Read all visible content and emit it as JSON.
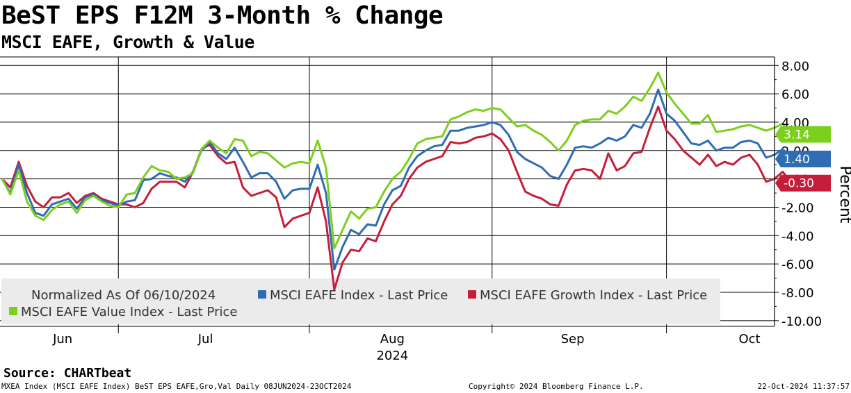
{
  "header": {
    "title": "BeST EPS F12M 3-Month % Change",
    "subtitle": "MSCI EAFE, Growth & Value"
  },
  "footer": {
    "source": "Source: CHARTbeat",
    "left": "MXEA Index (MSCI EAFE Index) BeST EPS EAFE,Gro,Val  Daily 08JUN2024-23OCT2024",
    "center": "Copyright© 2024 Bloomberg Finance L.P.",
    "right": "22-Oct-2024 11:37:57"
  },
  "colors": {
    "index": "#2E6DB4",
    "growth": "#C41E3A",
    "value": "#7DCF1E",
    "legend_bg": "#EBEBEB"
  },
  "chart_data": {
    "type": "line",
    "title": "BeST EPS F12M 3-Month % Change",
    "subtitle": "MSCI EAFE, Growth & Value",
    "ylabel": "Percent",
    "xlabel": "2024",
    "ylim": [
      -10.4,
      8.6
    ],
    "yticks": [
      8,
      6,
      4,
      2,
      0,
      -2,
      -4,
      -6,
      -8,
      -10
    ],
    "ytick_labels": [
      "8.00",
      "6.00",
      "4.00",
      "2.00",
      "0.00",
      "-2.00",
      "-4.00",
      "-6.00",
      "-8.00",
      "-10.00"
    ],
    "x_range": [
      0,
      91
    ],
    "month_labels": [
      {
        "label": "Jun",
        "x": 8.3
      },
      {
        "label": "Jul",
        "x": 25.5
      },
      {
        "label": "Aug",
        "x": 48
      },
      {
        "label": "Sep",
        "x": 69.7
      },
      {
        "label": "Oct",
        "x": 91
      }
    ],
    "year_label": "2024",
    "year_x": 48,
    "vertical_gridlines_x": [
      14,
      37,
      59,
      80
    ],
    "legend_note": "Normalized As Of 06/10/2024",
    "series": [
      {
        "name": "MSCI EAFE Index - Last Price",
        "key": "index",
        "last_value": "1.40",
        "values": [
          0.0,
          -1.0,
          1.0,
          -1.0,
          -2.4,
          -2.6,
          -1.8,
          -1.6,
          -1.4,
          -2.1,
          -1.3,
          -1.1,
          -1.5,
          -1.7,
          -1.9,
          -1.6,
          -1.5,
          -0.1,
          0.0,
          0.4,
          0.2,
          0.1,
          -0.2,
          0.5,
          2.0,
          2.6,
          1.8,
          1.4,
          2.2,
          1.2,
          0.1,
          0.4,
          0.4,
          -0.2,
          -1.4,
          -0.8,
          -0.7,
          -0.7,
          1.0,
          -1.0,
          -6.4,
          -4.8,
          -3.6,
          -3.9,
          -3.2,
          -3.3,
          -1.8,
          -0.8,
          -0.5,
          0.8,
          1.6,
          2.0,
          2.3,
          2.4,
          3.4,
          3.4,
          3.6,
          3.7,
          3.8,
          4.0,
          3.8,
          3.1,
          1.9,
          1.4,
          1.1,
          0.8,
          0.2,
          0.0,
          1.0,
          2.2,
          2.3,
          2.2,
          2.5,
          2.9,
          2.7,
          3.0,
          3.8,
          3.6,
          4.6,
          6.3,
          4.6,
          4.1,
          3.3,
          2.5,
          2.4,
          2.7,
          2.0,
          2.2,
          2.2,
          2.6,
          2.7,
          2.5,
          1.5,
          1.7,
          2.1,
          1.4
        ]
      },
      {
        "name": "MSCI EAFE Growth Index - Last Price",
        "key": "growth",
        "last_value": "-0.30",
        "values": [
          0.0,
          -0.6,
          1.2,
          -0.5,
          -1.6,
          -2.0,
          -1.3,
          -1.3,
          -1.0,
          -1.7,
          -1.2,
          -1.0,
          -1.4,
          -1.6,
          -1.8,
          -1.8,
          -2.0,
          -1.7,
          -0.7,
          -0.2,
          -0.2,
          -0.2,
          -0.6,
          0.5,
          2.1,
          2.4,
          1.6,
          1.1,
          1.2,
          -0.6,
          -1.2,
          -1.0,
          -0.8,
          -1.3,
          -3.4,
          -2.8,
          -2.6,
          -2.4,
          -0.6,
          -3.0,
          -7.8,
          -5.9,
          -5.0,
          -5.1,
          -4.2,
          -4.4,
          -3.0,
          -1.8,
          -1.2,
          0.0,
          0.8,
          1.2,
          1.4,
          1.6,
          2.6,
          2.5,
          2.6,
          2.9,
          3.0,
          3.2,
          2.8,
          2.0,
          0.5,
          -0.9,
          -1.2,
          -1.4,
          -1.8,
          -1.9,
          -0.4,
          0.6,
          0.7,
          0.6,
          0.0,
          1.8,
          0.6,
          0.9,
          1.8,
          1.9,
          3.6,
          5.1,
          3.4,
          2.8,
          2.0,
          1.5,
          1.0,
          1.7,
          0.9,
          1.2,
          1.0,
          1.5,
          1.7,
          1.0,
          -0.2,
          0.0,
          0.5,
          -0.3
        ]
      },
      {
        "name": "MSCI EAFE Value Index - Last Price",
        "key": "value",
        "last_value": "3.14",
        "values": [
          0.0,
          -1.1,
          0.6,
          -1.6,
          -2.6,
          -2.9,
          -2.2,
          -1.8,
          -1.6,
          -2.4,
          -1.5,
          -1.2,
          -1.6,
          -1.9,
          -2.0,
          -1.1,
          -1.0,
          0.1,
          0.9,
          0.6,
          0.5,
          0.0,
          0.1,
          0.4,
          2.1,
          2.7,
          2.2,
          1.8,
          2.8,
          2.7,
          1.6,
          1.9,
          1.8,
          1.3,
          0.8,
          1.1,
          1.2,
          1.1,
          2.7,
          0.8,
          -4.9,
          -3.6,
          -2.3,
          -2.8,
          -2.1,
          -2.0,
          -0.9,
          0.0,
          0.5,
          1.4,
          2.5,
          2.8,
          2.9,
          3.0,
          4.2,
          4.4,
          4.7,
          4.9,
          4.8,
          5.0,
          4.9,
          4.3,
          3.7,
          3.8,
          3.4,
          3.1,
          2.6,
          2.0,
          2.7,
          3.8,
          4.1,
          4.2,
          4.2,
          4.8,
          4.6,
          5.1,
          5.8,
          5.5,
          6.4,
          7.5,
          6.1,
          5.3,
          4.6,
          3.9,
          3.9,
          4.5,
          3.3,
          3.4,
          3.5,
          3.7,
          3.8,
          3.6,
          3.4,
          3.6,
          3.9,
          3.14
        ]
      }
    ]
  }
}
